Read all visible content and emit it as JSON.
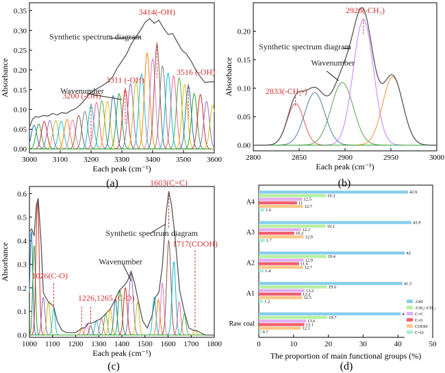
{
  "chart_data": [
    {
      "id": "a",
      "type": "line",
      "panel_label": "(a)",
      "xlabel": "Each peak (cm⁻¹)",
      "ylabel": "Absorbance",
      "xlim": [
        3000,
        3600
      ],
      "ylim": [
        -0.01,
        0.37
      ],
      "xticks": [
        3000,
        3100,
        3200,
        3300,
        3400,
        3500,
        3600
      ],
      "yticks": [
        0.0,
        0.05,
        0.1,
        0.15,
        0.2,
        0.25,
        0.3,
        0.35
      ],
      "ytick_labels": [
        "0.00",
        "0.05",
        "0.10",
        "0.15",
        "0.20",
        "0.25",
        "0.30",
        "0.35"
      ],
      "colors": [
        "#1f77b4",
        "#2ca02c",
        "#d62728",
        "#9467bd",
        "#bcbd22",
        "#17becf",
        "#ff7f0e",
        "#e377c2",
        "#8c564b",
        "#7f7f7f",
        "#00bcd4",
        "#f06292",
        "#4caf50",
        "#ffb300"
      ],
      "components": [
        {
          "c": 3015,
          "h": 0.06
        },
        {
          "c": 3030,
          "h": 0.063
        },
        {
          "c": 3048,
          "h": 0.07
        },
        {
          "c": 3066,
          "h": 0.072
        },
        {
          "c": 3085,
          "h": 0.072
        },
        {
          "c": 3103,
          "h": 0.07
        },
        {
          "c": 3122,
          "h": 0.075
        },
        {
          "c": 3140,
          "h": 0.073
        },
        {
          "c": 3160,
          "h": 0.085
        },
        {
          "c": 3180,
          "h": 0.095
        },
        {
          "c": 3200,
          "h": 0.11
        },
        {
          "c": 3218,
          "h": 0.118
        },
        {
          "c": 3235,
          "h": 0.122
        },
        {
          "c": 3253,
          "h": 0.12
        },
        {
          "c": 3272,
          "h": 0.135
        },
        {
          "c": 3291,
          "h": 0.14
        },
        {
          "c": 3311,
          "h": 0.15
        },
        {
          "c": 3328,
          "h": 0.165
        },
        {
          "c": 3346,
          "h": 0.17
        },
        {
          "c": 3364,
          "h": 0.19
        },
        {
          "c": 3382,
          "h": 0.243
        },
        {
          "c": 3400,
          "h": 0.228
        },
        {
          "c": 3414,
          "h": 0.265
        },
        {
          "c": 3432,
          "h": 0.21
        },
        {
          "c": 3450,
          "h": 0.192
        },
        {
          "c": 3468,
          "h": 0.185
        },
        {
          "c": 3486,
          "h": 0.18
        },
        {
          "c": 3504,
          "h": 0.163
        },
        {
          "c": 3516,
          "h": 0.16
        },
        {
          "c": 3535,
          "h": 0.14
        },
        {
          "c": 3555,
          "h": 0.138
        },
        {
          "c": 3575,
          "h": 0.12
        },
        {
          "c": 3595,
          "h": 0.11
        }
      ],
      "component_sigma": 9,
      "synthetic_curve": {
        "x": [
          3000,
          3010,
          3020,
          3030,
          3045,
          3060,
          3075,
          3090,
          3105,
          3120,
          3135,
          3150,
          3165,
          3180,
          3195,
          3210,
          3225,
          3240,
          3255,
          3270,
          3285,
          3300,
          3315,
          3330,
          3345,
          3360,
          3375,
          3390,
          3405,
          3420,
          3435,
          3450,
          3465,
          3480,
          3495,
          3510,
          3525,
          3540,
          3555,
          3570,
          3585,
          3600
        ],
        "y": [
          0.055,
          0.075,
          0.082,
          0.08,
          0.085,
          0.083,
          0.09,
          0.086,
          0.092,
          0.09,
          0.097,
          0.102,
          0.112,
          0.125,
          0.14,
          0.148,
          0.155,
          0.162,
          0.17,
          0.182,
          0.205,
          0.222,
          0.24,
          0.265,
          0.283,
          0.3,
          0.32,
          0.33,
          0.318,
          0.326,
          0.306,
          0.29,
          0.292,
          0.27,
          0.25,
          0.24,
          0.222,
          0.2,
          0.182,
          0.168,
          0.17,
          0.17
        ]
      },
      "annotations": [
        {
          "label": "3414(-OH)",
          "x": 3414,
          "y": 0.27,
          "color": "#d32f2f"
        },
        {
          "label": "3311 (-OH)",
          "x": 3311,
          "y": 0.155,
          "color": "#d32f2f"
        },
        {
          "label": "3516 (-OH)",
          "x": 3516,
          "y": 0.165,
          "color": "#d32f2f"
        },
        {
          "label": "3200 (-OH)",
          "x": 3200,
          "y": 0.115,
          "color": "#d32f2f"
        },
        {
          "label": "Synthetic spectrum diagram",
          "x": 3362,
          "y": 0.275,
          "color": "#222222"
        },
        {
          "label": "Wavenumber",
          "x": 3300,
          "y": 0.135,
          "color": "#222222"
        }
      ]
    },
    {
      "id": "b",
      "type": "line",
      "panel_label": "(b)",
      "xlabel": "Each peak (cm⁻¹)",
      "ylabel": "Absorbance",
      "xlim": [
        2800,
        3000
      ],
      "ylim": [
        -0.01,
        0.25
      ],
      "xticks": [
        2800,
        2850,
        2900,
        2950,
        3000
      ],
      "yticks": [
        0.0,
        0.05,
        0.1,
        0.15,
        0.2
      ],
      "ytick_labels": [
        "0.00",
        "0.05",
        "0.10",
        "0.15",
        "0.20"
      ],
      "colors": [
        "#e15759",
        "#4e79a7",
        "#59a14f",
        "#c77cff",
        "#f28e2b"
      ],
      "components": [
        {
          "c": 2846,
          "h": 0.073,
          "s": 9
        },
        {
          "c": 2867,
          "h": 0.092,
          "s": 11
        },
        {
          "c": 2897,
          "h": 0.11,
          "s": 12
        },
        {
          "c": 2920,
          "h": 0.22,
          "s": 11
        },
        {
          "c": 2952,
          "h": 0.12,
          "s": 11
        }
      ],
      "annotations": [
        {
          "label": "2920(-CH₃)",
          "x": 2920,
          "y": 0.225,
          "color": "#d32f2f"
        },
        {
          "label": "2833(-CH₂-)",
          "x": 2846,
          "y": 0.078,
          "color": "#d32f2f"
        },
        {
          "label": "Synthetic spectrum diagram",
          "x": 2890,
          "y": 0.13,
          "color": "#222222"
        },
        {
          "label": "Wavenumber",
          "x": 2893,
          "y": 0.112,
          "color": "#222222"
        }
      ]
    },
    {
      "id": "c",
      "type": "line",
      "panel_label": "(c)",
      "xlabel": "Each peak (cm⁻¹)",
      "ylabel": "Absorbance",
      "xlim": [
        1000,
        1800
      ],
      "ylim": [
        -0.01,
        0.63
      ],
      "xticks": [
        1000,
        1100,
        1200,
        1300,
        1400,
        1500,
        1600,
        1700,
        1800
      ],
      "yticks": [
        0.0,
        0.1,
        0.2,
        0.3,
        0.4,
        0.5,
        0.6
      ],
      "ytick_labels": [
        "0.0",
        "0.1",
        "0.2",
        "0.3",
        "0.4",
        "0.5",
        "0.6"
      ],
      "colors": [
        "#1f77b4",
        "#2ca02c",
        "#d62728",
        "#9467bd",
        "#bcbd22",
        "#17becf",
        "#ff7f0e",
        "#e377c2",
        "#8c564b",
        "#00bcd4",
        "#f06292",
        "#4caf50",
        "#ffb300"
      ],
      "components": [
        {
          "c": 1008,
          "h": 0.44,
          "s": 6
        },
        {
          "c": 1020,
          "h": 0.38,
          "s": 6
        },
        {
          "c": 1035,
          "h": 0.57,
          "s": 7
        },
        {
          "c": 1060,
          "h": 0.16,
          "s": 7
        },
        {
          "c": 1082,
          "h": 0.14,
          "s": 7
        },
        {
          "c": 1105,
          "h": 0.11,
          "s": 6
        },
        {
          "c": 1226,
          "h": 0.03,
          "s": 5
        },
        {
          "c": 1248,
          "h": 0.05,
          "s": 6
        },
        {
          "c": 1265,
          "h": 0.04,
          "s": 6
        },
        {
          "c": 1290,
          "h": 0.06,
          "s": 7
        },
        {
          "c": 1312,
          "h": 0.07,
          "s": 7
        },
        {
          "c": 1330,
          "h": 0.09,
          "s": 7
        },
        {
          "c": 1350,
          "h": 0.11,
          "s": 7
        },
        {
          "c": 1372,
          "h": 0.15,
          "s": 7
        },
        {
          "c": 1392,
          "h": 0.19,
          "s": 8
        },
        {
          "c": 1415,
          "h": 0.2,
          "s": 8
        },
        {
          "c": 1440,
          "h": 0.26,
          "s": 9
        },
        {
          "c": 1468,
          "h": 0.14,
          "s": 7
        },
        {
          "c": 1540,
          "h": 0.16,
          "s": 7
        },
        {
          "c": 1558,
          "h": 0.15,
          "s": 7
        },
        {
          "c": 1575,
          "h": 0.22,
          "s": 7
        },
        {
          "c": 1603,
          "h": 0.4,
          "s": 9
        },
        {
          "c": 1625,
          "h": 0.31,
          "s": 8
        },
        {
          "c": 1648,
          "h": 0.14,
          "s": 7
        },
        {
          "c": 1670,
          "h": 0.09,
          "s": 7
        },
        {
          "c": 1717,
          "h": 0.02,
          "s": 6
        }
      ],
      "synthetic_curve": {
        "x": [
          1000,
          1010,
          1020,
          1030,
          1038,
          1050,
          1060,
          1070,
          1082,
          1095,
          1105,
          1120,
          1140,
          1160,
          1180,
          1200,
          1215,
          1226,
          1240,
          1255,
          1270,
          1290,
          1310,
          1330,
          1350,
          1370,
          1390,
          1410,
          1425,
          1440,
          1455,
          1470,
          1490,
          1510,
          1530,
          1545,
          1560,
          1575,
          1590,
          1603,
          1615,
          1630,
          1650,
          1670,
          1690,
          1710,
          1720,
          1740,
          1760,
          1780,
          1800
        ],
        "y": [
          0.44,
          0.45,
          0.42,
          0.55,
          0.58,
          0.4,
          0.18,
          0.16,
          0.14,
          0.13,
          0.12,
          0.06,
          0.02,
          0.01,
          0.01,
          0.01,
          0.02,
          0.03,
          0.03,
          0.05,
          0.05,
          0.06,
          0.07,
          0.09,
          0.11,
          0.15,
          0.19,
          0.21,
          0.23,
          0.27,
          0.22,
          0.15,
          0.06,
          0.03,
          0.08,
          0.16,
          0.18,
          0.29,
          0.5,
          0.61,
          0.55,
          0.42,
          0.19,
          0.1,
          0.03,
          0.02,
          0.02,
          0.01,
          0.0,
          0.0,
          0.0
        ]
      },
      "annotations": [
        {
          "label": "1603(C=C)",
          "x": 1603,
          "y": 0.62,
          "color": "#d32f2f"
        },
        {
          "label": "1717(COOH)",
          "x": 1717,
          "y": 0.03,
          "color": "#d32f2f"
        },
        {
          "label": "1026(C-O)",
          "x": 1105,
          "y": 0.12,
          "color": "#d32f2f"
        },
        {
          "label": "1226,1265 (C-O)",
          "x": 1226,
          "y": 0.04,
          "color": "#d32f2f"
        },
        {
          "label": "Synthetic spectrum diagram",
          "x": 1600,
          "y": 0.42,
          "color": "#222222"
        },
        {
          "label": "Wavenumber",
          "x": 1445,
          "y": 0.21,
          "color": "#222222"
        }
      ]
    },
    {
      "id": "d",
      "type": "bar",
      "orientation": "horizontal",
      "panel_label": "(d)",
      "xlabel": "The proportion of main functional groups (%)",
      "xlim": [
        0,
        50
      ],
      "xticks": [
        0,
        10,
        20,
        30,
        40,
        50
      ],
      "categories": [
        "A4",
        "A3",
        "A2",
        "A1",
        "Raw coal"
      ],
      "series": [
        {
          "name": "-OH",
          "color": "#87ceeb",
          "values": [
            42.9,
            43.9,
            42.0,
            41.3,
            40.8
          ]
        },
        {
          "name": "-CH₂/-CH₂-",
          "color": "#b7f0a0",
          "values": [
            19.3,
            19.2,
            19.4,
            19.6,
            19.7
          ]
        },
        {
          "name": "C=C",
          "color": "#e0b0f0",
          "values": [
            12.5,
            12.1,
            12.9,
            13.2,
            13.6
          ]
        },
        {
          "name": "C-O",
          "color": "#f06070",
          "values": [
            11.0,
            10.2,
            11.6,
            12.2,
            13.1
          ]
        },
        {
          "name": "COOH",
          "color": "#f8c888",
          "values": [
            12.7,
            12.9,
            12.7,
            12.5,
            12.1
          ]
        },
        {
          "name": "C=O",
          "color": "#a8ecd8",
          "values": [
            1.6,
            1.7,
            1.4,
            1.2,
            0.7
          ]
        }
      ],
      "value_labels": [
        [
          "42.9",
          "19.3",
          "12.5",
          "11",
          "12.7",
          "1.6"
        ],
        [
          "43.9",
          "19.2",
          "12.1",
          "10.2",
          "12.9",
          "1.7"
        ],
        [
          "42",
          "19.4",
          "12.9",
          "11.6",
          "12.7",
          "1.4"
        ],
        [
          "41.3",
          "19.6",
          "13.2",
          "12.2",
          "12.5",
          "1.2"
        ],
        [
          "40.8",
          "19.7",
          "13.6",
          "13.1",
          "12.1",
          "0.7"
        ]
      ],
      "legend_position": "bottom-right"
    }
  ]
}
